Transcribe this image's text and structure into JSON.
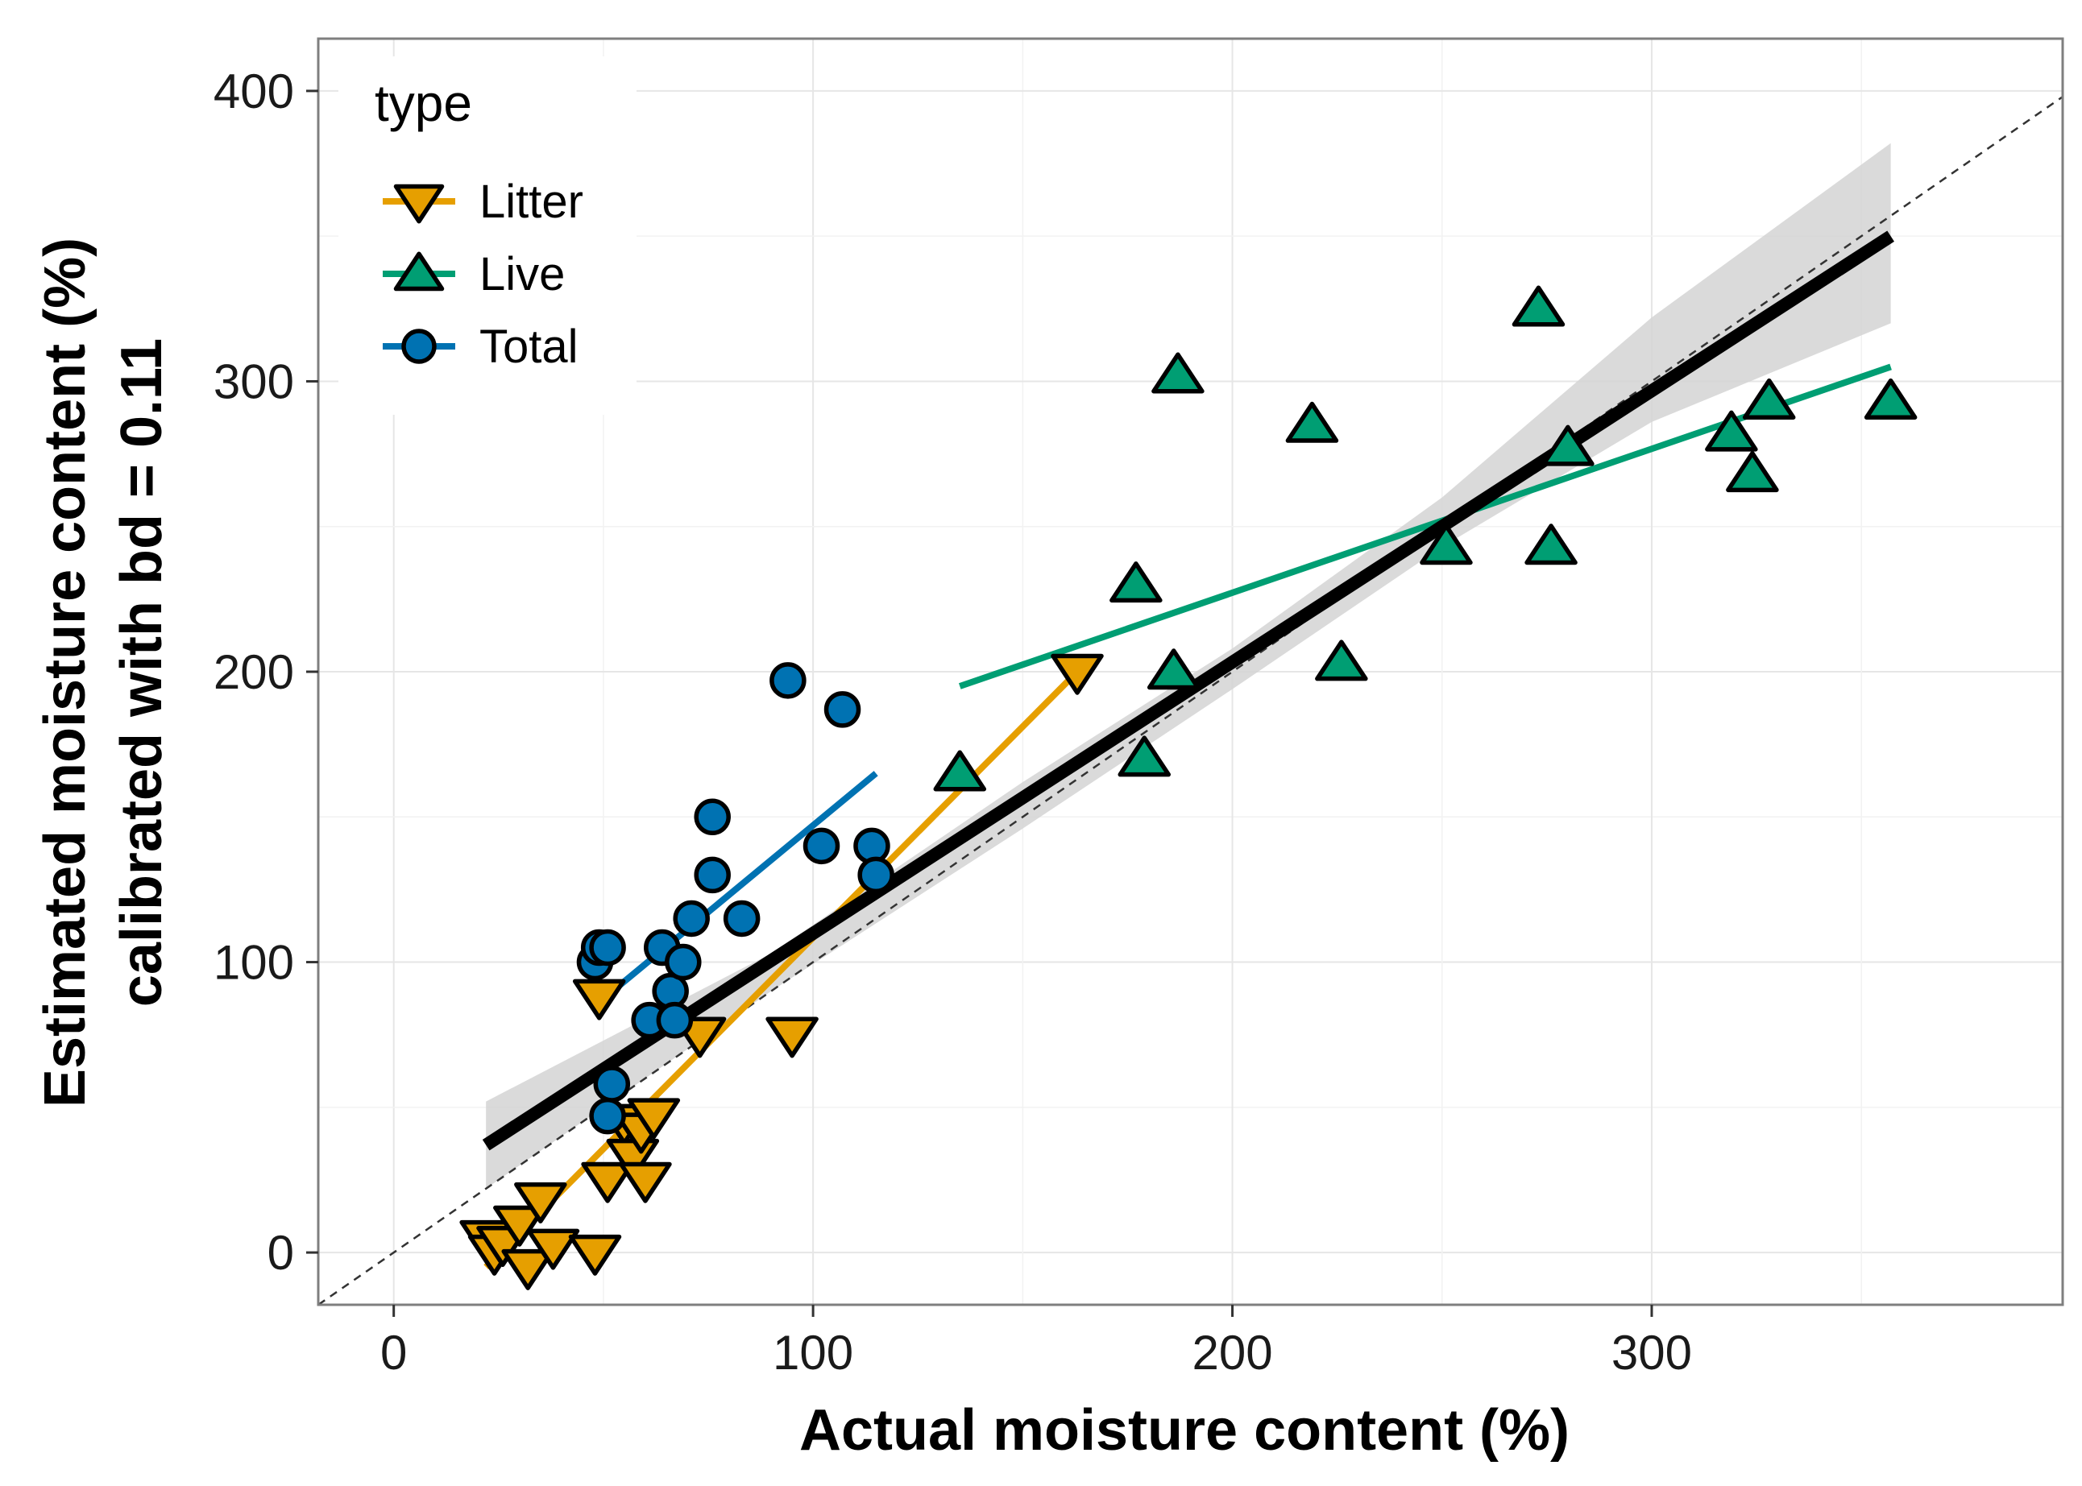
{
  "chart_data": {
    "type": "scatter",
    "title": "",
    "xlabel": "Actual moisture content (%)",
    "ylabel_line1": "Estimated moisture content (%)",
    "ylabel_line2": "calibrated with bd = 0.11",
    "xlim": [
      -18,
      398
    ],
    "ylim": [
      -18,
      418
    ],
    "xticks": [
      0,
      100,
      200,
      300
    ],
    "yticks": [
      0,
      100,
      200,
      300,
      400
    ],
    "xtick_labels": [
      "0",
      "100",
      "200",
      "300"
    ],
    "ytick_labels": [
      "0",
      "100",
      "200",
      "300",
      "400"
    ],
    "grid": true,
    "legend": {
      "title": "type",
      "position": "top-left",
      "entries": [
        "Litter",
        "Live",
        "Total"
      ]
    },
    "reference_line": {
      "style": "dashed",
      "slope": 1,
      "intercept": 0
    },
    "overall_fit": {
      "color": "#000000",
      "x": [
        22,
        357
      ],
      "y": [
        37,
        350
      ],
      "ci_band": {
        "x": [
          22,
          90,
          150,
          200,
          250,
          300,
          357
        ],
        "upper": [
          52,
          103,
          162,
          208,
          260,
          322,
          382
        ],
        "lower": [
          22,
          90,
          146,
          194,
          243,
          286,
          320
        ]
      }
    },
    "series": [
      {
        "name": "Litter",
        "marker": "triangle-down",
        "color": "#E69F00",
        "fit": {
          "x": [
            22,
            163
          ],
          "y": [
            -5,
            200
          ]
        },
        "points": [
          {
            "x": 22,
            "y": 5
          },
          {
            "x": 24,
            "y": 0
          },
          {
            "x": 26,
            "y": 3
          },
          {
            "x": 30,
            "y": 10
          },
          {
            "x": 32,
            "y": -5
          },
          {
            "x": 35,
            "y": 18
          },
          {
            "x": 38,
            "y": 2
          },
          {
            "x": 48,
            "y": 0
          },
          {
            "x": 49,
            "y": 88
          },
          {
            "x": 51,
            "y": 25
          },
          {
            "x": 55,
            "y": 45
          },
          {
            "x": 57,
            "y": 33
          },
          {
            "x": 59,
            "y": 42
          },
          {
            "x": 60,
            "y": 25
          },
          {
            "x": 62,
            "y": 47
          },
          {
            "x": 73,
            "y": 75
          },
          {
            "x": 95,
            "y": 75
          },
          {
            "x": 163,
            "y": 200
          }
        ]
      },
      {
        "name": "Live",
        "marker": "triangle-up",
        "color": "#009E73",
        "fit": {
          "x": [
            135,
            357
          ],
          "y": [
            195,
            305
          ]
        },
        "points": [
          {
            "x": 135,
            "y": 165
          },
          {
            "x": 177,
            "y": 230
          },
          {
            "x": 179,
            "y": 170
          },
          {
            "x": 186,
            "y": 200
          },
          {
            "x": 187,
            "y": 302
          },
          {
            "x": 219,
            "y": 285
          },
          {
            "x": 226,
            "y": 203
          },
          {
            "x": 251,
            "y": 243
          },
          {
            "x": 273,
            "y": 325
          },
          {
            "x": 276,
            "y": 243
          },
          {
            "x": 280,
            "y": 277
          },
          {
            "x": 319,
            "y": 282
          },
          {
            "x": 324,
            "y": 268
          },
          {
            "x": 328,
            "y": 293
          },
          {
            "x": 357,
            "y": 293
          }
        ]
      },
      {
        "name": "Total",
        "marker": "circle",
        "color": "#0072B2",
        "fit": {
          "x": [
            48,
            115
          ],
          "y": [
            85,
            165
          ]
        },
        "points": [
          {
            "x": 48,
            "y": 100
          },
          {
            "x": 49,
            "y": 105
          },
          {
            "x": 51,
            "y": 105
          },
          {
            "x": 51,
            "y": 47
          },
          {
            "x": 52,
            "y": 58
          },
          {
            "x": 61,
            "y": 80
          },
          {
            "x": 64,
            "y": 105
          },
          {
            "x": 66,
            "y": 90
          },
          {
            "x": 67,
            "y": 80
          },
          {
            "x": 69,
            "y": 100
          },
          {
            "x": 71,
            "y": 115
          },
          {
            "x": 76,
            "y": 150
          },
          {
            "x": 76,
            "y": 130
          },
          {
            "x": 83,
            "y": 115
          },
          {
            "x": 94,
            "y": 197
          },
          {
            "x": 102,
            "y": 140
          },
          {
            "x": 107,
            "y": 187
          },
          {
            "x": 114,
            "y": 140
          },
          {
            "x": 115,
            "y": 130
          }
        ]
      }
    ]
  }
}
